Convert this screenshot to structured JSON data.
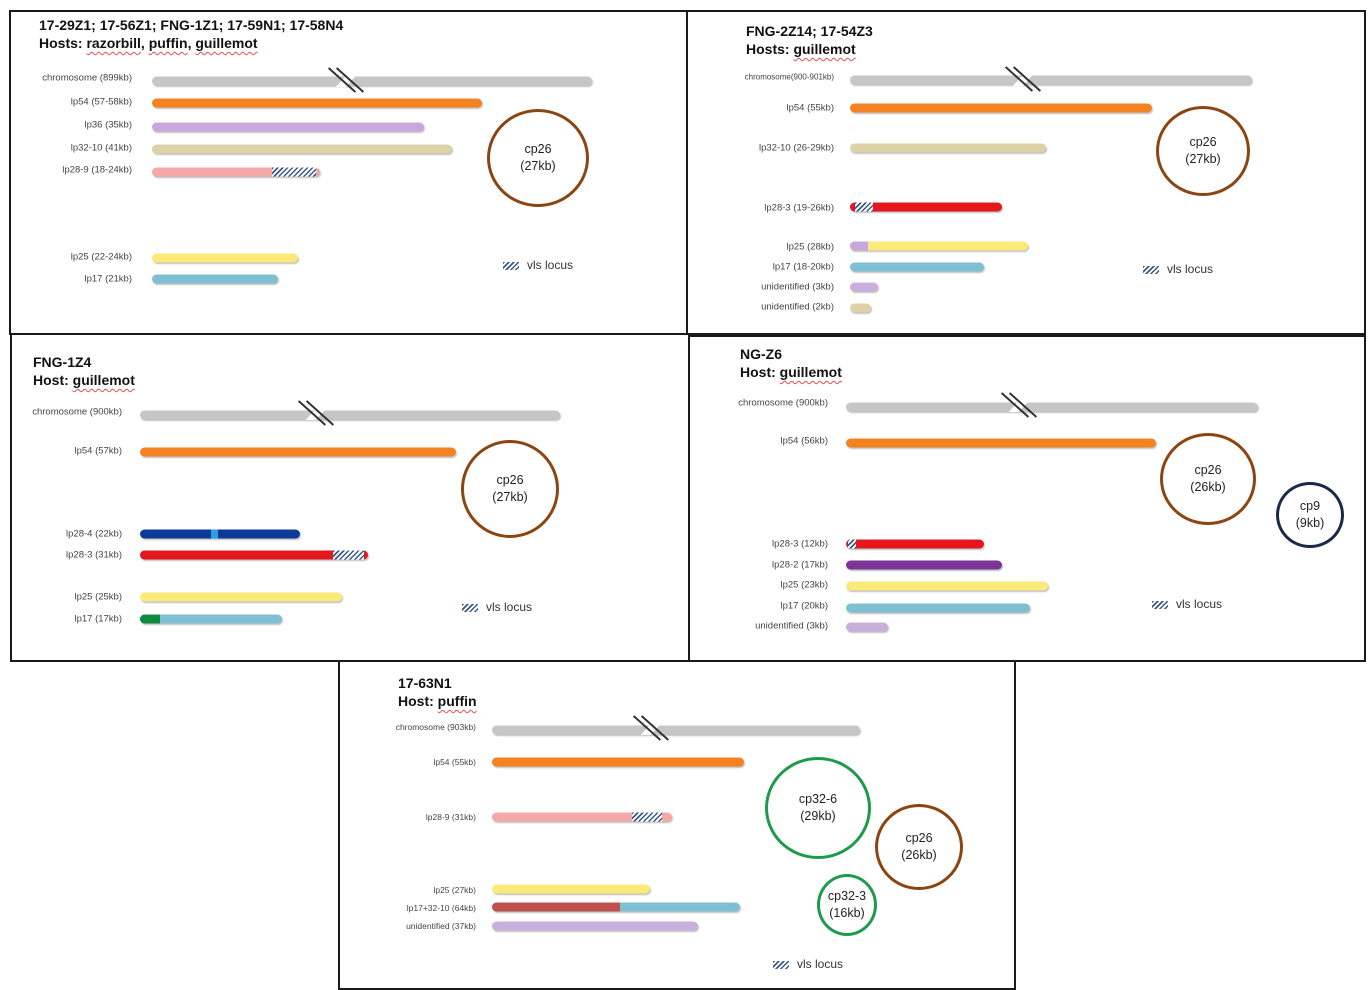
{
  "colors": {
    "chromosome": "#c6c6c6",
    "lp54": "#f58220",
    "lp36": "#c8a8dc",
    "lp32": "#ddd1a8",
    "lp28_9": "#f4a9a8",
    "lp25": "#fbe97a",
    "lp17": "#7ec0d2",
    "lp28_3": "#e3171c",
    "lp28_4": "#0b3b98",
    "lp28_4_mark": "#2f9be0",
    "lp28_2": "#7b3596",
    "unidentified_purple": "#c9afdc",
    "unidentified_tan": "#ddd1a8",
    "lp17_green": "#0d8a3a",
    "lp17_32_red": "#c0504d",
    "cp26": "#8b4513",
    "cp9": "#1b2a4a",
    "cp32": "#1e9a4c",
    "hatch": "#3a5a8c"
  },
  "legend_label": "vls locus",
  "panels": [
    {
      "id": "p1",
      "title_strains": "17-29Z1; 17-56Z1; FNG-1Z1; 17-59N1; 17-58N4",
      "title_prefix": "Hosts: ",
      "hosts": [
        "razorbill",
        "puffin",
        "guillemot"
      ],
      "plasmids": [
        {
          "label": "chromosome (899kb)",
          "color": "chromosome",
          "length_kb": 899,
          "break": true
        },
        {
          "label": "lp54 (57-58kb)",
          "color": "lp54",
          "length_kb": 57.5
        },
        {
          "label": "lp36 (35kb)",
          "color": "lp36",
          "length_kb": 35
        },
        {
          "label": "lp32-10 (41kb)",
          "color": "lp32",
          "length_kb": 41
        },
        {
          "label": "lp28-9 (18-24kb)",
          "color": "lp28_9",
          "length_kb": 24,
          "vls": "end"
        },
        {
          "label": "lp25 (22-24kb)",
          "color": "lp25",
          "length_kb": 23
        },
        {
          "label": "lp17 (21kb)",
          "color": "lp17",
          "length_kb": 21
        }
      ],
      "circles": [
        {
          "name": "cp26",
          "size": "(27kb)",
          "color": "cp26"
        }
      ]
    },
    {
      "id": "p2",
      "title_strains": "FNG-2Z14; 17-54Z3",
      "title_prefix": "Hosts: ",
      "hosts": [
        "guillemot"
      ],
      "plasmids": [
        {
          "label": "chromosome(900-901kb)",
          "color": "chromosome",
          "length_kb": 900,
          "break": true
        },
        {
          "label": "lp54 (55kb)",
          "color": "lp54",
          "length_kb": 55
        },
        {
          "label": "lp32-10 (26-29kb)",
          "color": "lp32",
          "length_kb": 29
        },
        {
          "label": "lp28-3 (19-26kb)",
          "color": "lp28_3",
          "length_kb": 26,
          "vls": "start"
        },
        {
          "label": "lp25 (28kb)",
          "color": "lp25",
          "length_kb": 28,
          "prefix": "lp36"
        },
        {
          "label": "lp17 (18-20kb)",
          "color": "lp17",
          "length_kb": 20
        },
        {
          "label": "unidentified (3kb)",
          "color": "unidentified_purple",
          "length_kb": 3
        },
        {
          "label": "unidentified (2kb)",
          "color": "unidentified_tan",
          "length_kb": 2
        }
      ],
      "circles": [
        {
          "name": "cp26",
          "size": "(27kb)",
          "color": "cp26"
        }
      ]
    },
    {
      "id": "p3",
      "title_strains": "FNG-1Z4",
      "title_prefix": "Host: ",
      "hosts": [
        "guillemot"
      ],
      "plasmids": [
        {
          "label": "chromosome (900kb)",
          "color": "chromosome",
          "length_kb": 900,
          "break": true
        },
        {
          "label": "lp54 (57kb)",
          "color": "lp54",
          "length_kb": 57
        },
        {
          "label": "lp28-4 (22kb)",
          "color": "lp28_4",
          "length_kb": 22,
          "mark": "lp28_4_mark"
        },
        {
          "label": "lp28-3 (31kb)",
          "color": "lp28_3",
          "length_kb": 31,
          "vls": "end"
        },
        {
          "label": "lp25 (25kb)",
          "color": "lp25",
          "length_kb": 25
        },
        {
          "label": "lp17 (17kb)",
          "color": "lp17",
          "length_kb": 17,
          "prefix": "lp17_green"
        }
      ],
      "circles": [
        {
          "name": "cp26",
          "size": "(27kb)",
          "color": "cp26"
        }
      ]
    },
    {
      "id": "p4",
      "title_strains": "NG-Z6",
      "title_prefix": "Host: ",
      "hosts": [
        "guillemot"
      ],
      "plasmids": [
        {
          "label": "chromosome (900kb)",
          "color": "chromosome",
          "length_kb": 900,
          "break": true
        },
        {
          "label": "lp54 (56kb)",
          "color": "lp54",
          "length_kb": 56
        },
        {
          "label": "lp28-3 (12kb)",
          "color": "lp28_3",
          "length_kb": 12,
          "vls": "start"
        },
        {
          "label": "lp28-2 (17kb)",
          "color": "lp28_2",
          "length_kb": 17
        },
        {
          "label": "lp25 (23kb)",
          "color": "lp25",
          "length_kb": 23
        },
        {
          "label": "lp17 (20kb)",
          "color": "lp17",
          "length_kb": 20
        },
        {
          "label": "unidentified (3kb)",
          "color": "unidentified_purple",
          "length_kb": 3
        }
      ],
      "circles": [
        {
          "name": "cp26",
          "size": "(26kb)",
          "color": "cp26"
        },
        {
          "name": "cp9",
          "size": "(9kb)",
          "color": "cp9"
        }
      ]
    },
    {
      "id": "p5",
      "title_strains": "17-63N1",
      "title_prefix": "Host: ",
      "hosts": [
        "puffin"
      ],
      "plasmids": [
        {
          "label": "chromosome (903kb)",
          "color": "chromosome",
          "length_kb": 903,
          "break": true
        },
        {
          "label": "lp54 (55kb)",
          "color": "lp54",
          "length_kb": 55
        },
        {
          "label": "lp28-9 (31kb)",
          "color": "lp28_9",
          "length_kb": 31,
          "vls": "end"
        },
        {
          "label": "lp25 (27kb)",
          "color": "lp25",
          "length_kb": 27
        },
        {
          "label": "lp17+32-10 (64kb)",
          "color": "lp17",
          "length_kb": 64,
          "prefix": "lp17_32_red"
        },
        {
          "label": "unidentified (37kb)",
          "color": "unidentified_purple",
          "length_kb": 37
        }
      ],
      "circles": [
        {
          "name": "cp32-6",
          "size": "(29kb)",
          "color": "cp32"
        },
        {
          "name": "cp26",
          "size": "(26kb)",
          "color": "cp26"
        },
        {
          "name": "cp32-3",
          "size": "(16kb)",
          "color": "cp32"
        }
      ]
    }
  ]
}
